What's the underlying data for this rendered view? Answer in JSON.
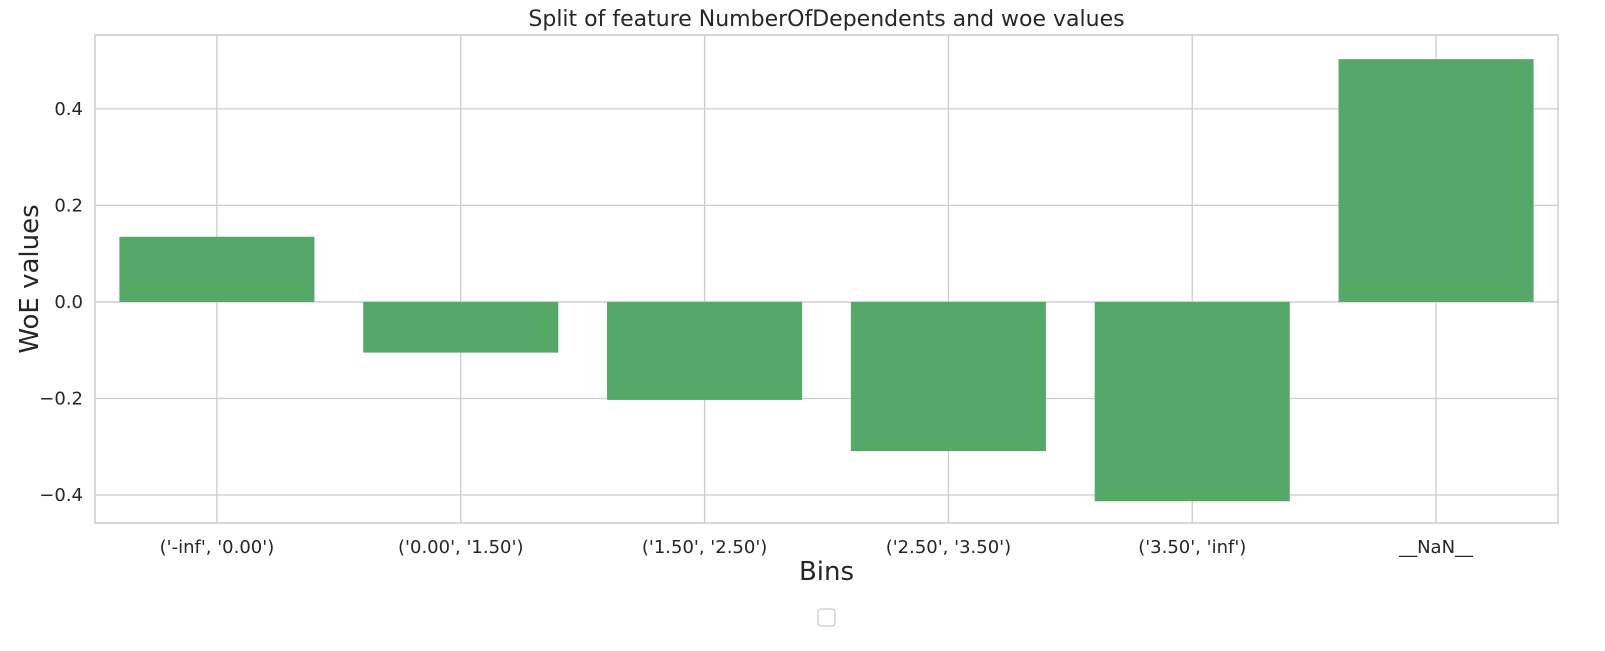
{
  "chart_data": {
    "type": "bar",
    "title": "Split of feature NumberOfDependents and woe values",
    "xlabel": "Bins",
    "ylabel": "WoE values",
    "categories": [
      "('-inf', '0.00')",
      "('0.00', '1.50')",
      "('1.50', '2.50')",
      "('2.50', '3.50')",
      "('3.50', 'inf')",
      "__NaN__"
    ],
    "values": [
      0.135,
      -0.105,
      -0.203,
      -0.309,
      -0.413,
      0.503
    ],
    "ylim": [
      -0.458,
      0.553
    ],
    "yticks": [
      -0.4,
      -0.2,
      0.0,
      0.2,
      0.4
    ],
    "ytick_labels": [
      "−0.4",
      "−0.2",
      "0.0",
      "0.2",
      "0.4"
    ],
    "bar_color": "#55a868",
    "grid": true,
    "legend": {
      "placement": "bottom-center",
      "entries": []
    }
  }
}
